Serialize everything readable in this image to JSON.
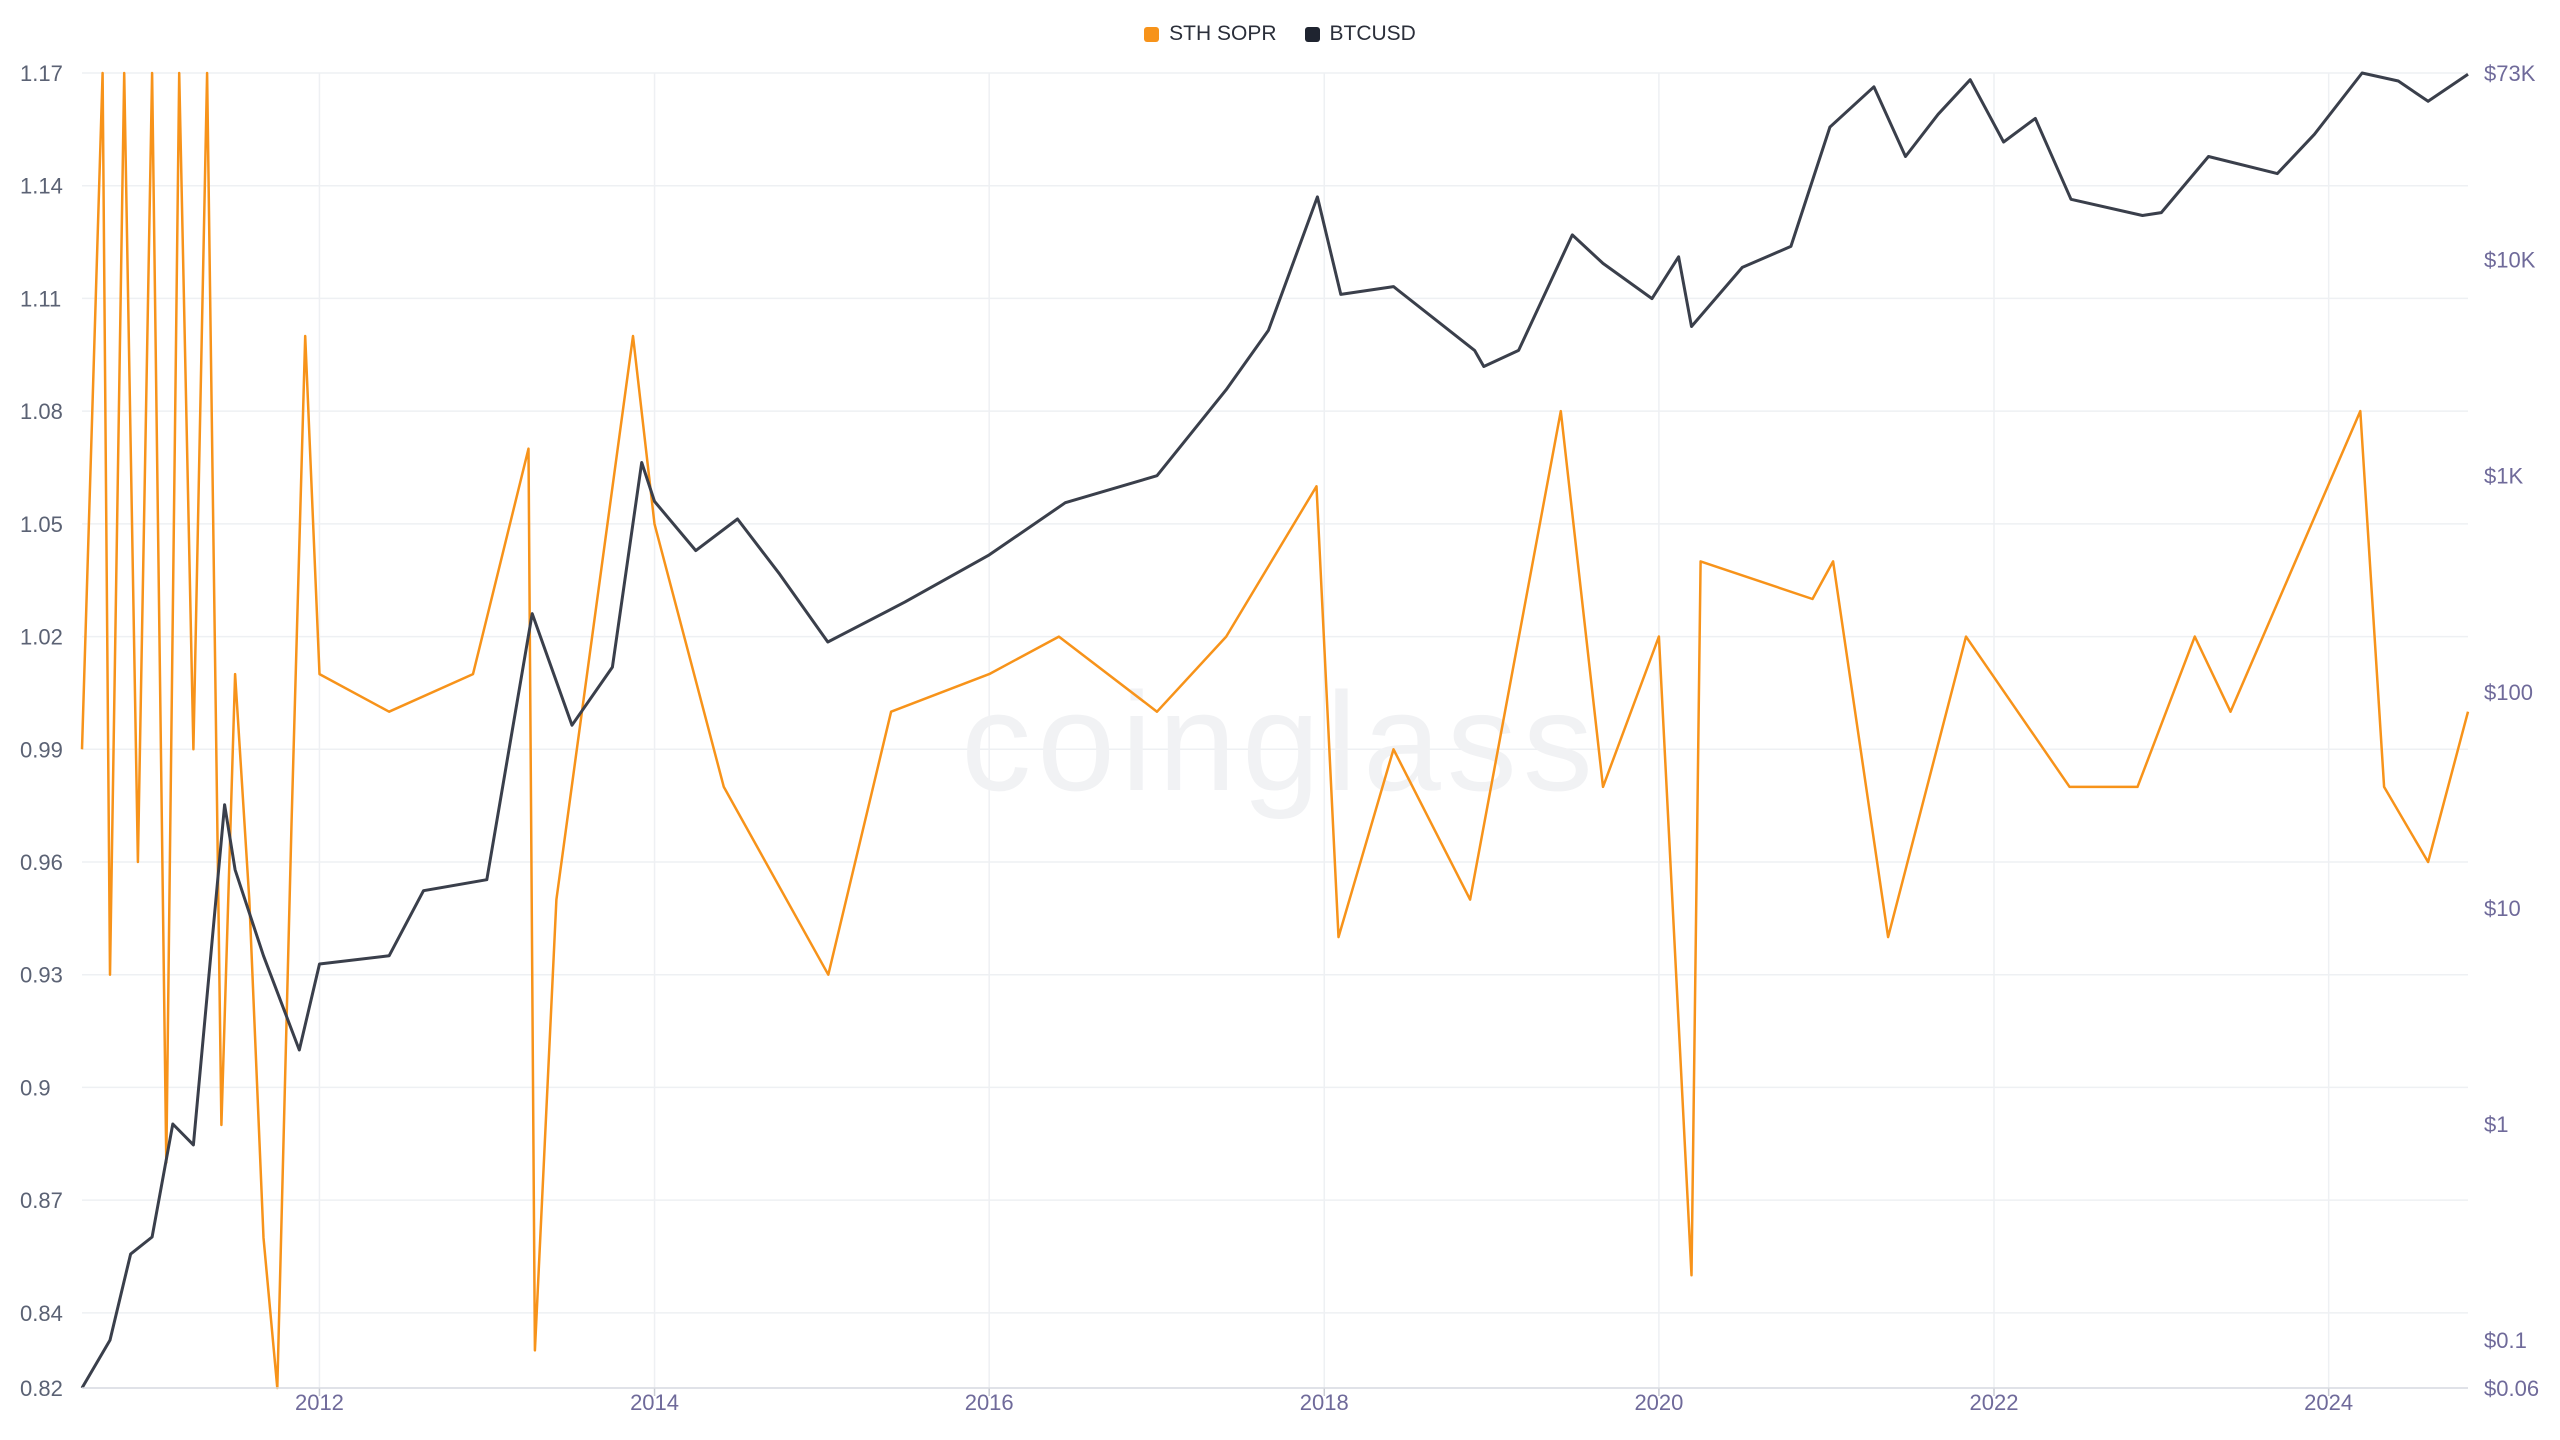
{
  "legend": {
    "items": [
      {
        "label": "STH SOPR",
        "color": "#f7931a"
      },
      {
        "label": "BTCUSD",
        "color": "#1f2430"
      }
    ]
  },
  "watermark": "coinglass",
  "chart_data": {
    "type": "line",
    "title": "",
    "legend_position": "top-center",
    "grid": true,
    "x_axis": {
      "type": "date",
      "range": [
        "2010-08-01",
        "2024-10-31"
      ],
      "tick_labels": [
        "2012",
        "2014",
        "2016",
        "2018",
        "2020",
        "2022",
        "2024"
      ],
      "tick_dates": [
        "2012-01-01",
        "2014-01-01",
        "2016-01-01",
        "2018-01-01",
        "2020-01-01",
        "2022-01-01",
        "2024-01-01"
      ]
    },
    "y_axis_left": {
      "label": "",
      "range": [
        0.82,
        1.17
      ],
      "ticks": [
        0.82,
        0.84,
        0.87,
        0.9,
        0.93,
        0.96,
        0.99,
        1.02,
        1.05,
        1.08,
        1.11,
        1.14,
        1.17
      ],
      "tick_labels": [
        "0.82",
        "0.84",
        "0.87",
        "0.9",
        "0.93",
        "0.96",
        "0.99",
        "1.02",
        "1.05",
        "1.08",
        "1.11",
        "1.14",
        "1.17"
      ]
    },
    "y_axis_right": {
      "label": "",
      "scale": "log",
      "range": [
        0.06,
        73000
      ],
      "ticks": [
        0.06,
        0.1,
        1,
        10,
        100,
        1000,
        10000,
        73000
      ],
      "tick_labels": [
        "$0.06",
        "$0.1",
        "$1",
        "$10",
        "$100",
        "$1K",
        "$10K",
        "$73K"
      ]
    },
    "series": [
      {
        "name": "STH SOPR",
        "axis": "left",
        "color": "#f7931a",
        "points": [
          [
            "2010-08-01",
            0.99
          ],
          [
            "2010-09-15",
            1.17
          ],
          [
            "2010-10-01",
            0.93
          ],
          [
            "2010-11-01",
            1.17
          ],
          [
            "2010-12-01",
            0.96
          ],
          [
            "2011-01-01",
            1.17
          ],
          [
            "2011-02-01",
            0.88
          ],
          [
            "2011-03-01",
            1.17
          ],
          [
            "2011-04-01",
            0.99
          ],
          [
            "2011-05-01",
            1.17
          ],
          [
            "2011-06-01",
            0.89
          ],
          [
            "2011-07-01",
            1.01
          ],
          [
            "2011-08-01",
            0.95
          ],
          [
            "2011-09-01",
            0.86
          ],
          [
            "2011-10-01",
            0.82
          ],
          [
            "2011-11-01",
            0.97
          ],
          [
            "2011-12-01",
            1.1
          ],
          [
            "2012-01-01",
            1.01
          ],
          [
            "2012-06-01",
            1.0
          ],
          [
            "2012-12-01",
            1.01
          ],
          [
            "2013-04-01",
            1.07
          ],
          [
            "2013-04-15",
            0.83
          ],
          [
            "2013-06-01",
            0.95
          ],
          [
            "2013-11-15",
            1.1
          ],
          [
            "2014-01-01",
            1.05
          ],
          [
            "2014-06-01",
            0.98
          ],
          [
            "2015-01-15",
            0.93
          ],
          [
            "2015-06-01",
            1.0
          ],
          [
            "2016-01-01",
            1.01
          ],
          [
            "2016-06-01",
            1.02
          ],
          [
            "2017-01-01",
            1.0
          ],
          [
            "2017-06-01",
            1.02
          ],
          [
            "2017-12-15",
            1.06
          ],
          [
            "2018-02-01",
            0.94
          ],
          [
            "2018-06-01",
            0.99
          ],
          [
            "2018-11-15",
            0.95
          ],
          [
            "2019-06-01",
            1.08
          ],
          [
            "2019-09-01",
            0.98
          ],
          [
            "2020-01-01",
            1.02
          ],
          [
            "2020-03-12",
            0.85
          ],
          [
            "2020-04-01",
            1.04
          ],
          [
            "2020-12-01",
            1.03
          ],
          [
            "2021-01-15",
            1.04
          ],
          [
            "2021-05-15",
            0.94
          ],
          [
            "2021-11-01",
            1.02
          ],
          [
            "2022-06-15",
            0.98
          ],
          [
            "2022-11-10",
            0.98
          ],
          [
            "2023-03-15",
            1.02
          ],
          [
            "2023-06-01",
            1.0
          ],
          [
            "2024-03-10",
            1.08
          ],
          [
            "2024-05-01",
            0.98
          ],
          [
            "2024-08-05",
            0.96
          ],
          [
            "2024-10-31",
            1.0
          ]
        ]
      },
      {
        "name": "BTCUSD",
        "axis": "right",
        "color": "#3a3f4b",
        "points": [
          [
            "2010-08-01",
            0.06
          ],
          [
            "2010-10-01",
            0.1
          ],
          [
            "2010-11-15",
            0.25
          ],
          [
            "2011-01-01",
            0.3
          ],
          [
            "2011-02-15",
            1.0
          ],
          [
            "2011-04-01",
            0.8
          ],
          [
            "2011-06-08",
            30
          ],
          [
            "2011-07-01",
            15
          ],
          [
            "2011-09-01",
            6
          ],
          [
            "2011-11-18",
            2.2
          ],
          [
            "2012-01-01",
            5.5
          ],
          [
            "2012-06-01",
            6
          ],
          [
            "2012-08-15",
            12
          ],
          [
            "2012-12-31",
            13.5
          ],
          [
            "2013-04-09",
            230
          ],
          [
            "2013-07-05",
            70
          ],
          [
            "2013-10-01",
            130
          ],
          [
            "2013-12-04",
            1150
          ],
          [
            "2014-01-01",
            760
          ],
          [
            "2014-04-01",
            450
          ],
          [
            "2014-07-01",
            630
          ],
          [
            "2014-10-01",
            350
          ],
          [
            "2015-01-14",
            170
          ],
          [
            "2015-07-01",
            260
          ],
          [
            "2016-01-01",
            430
          ],
          [
            "2016-06-15",
            750
          ],
          [
            "2017-01-01",
            1000
          ],
          [
            "2017-06-01",
            2500
          ],
          [
            "2017-09-01",
            4700
          ],
          [
            "2017-12-17",
            19500
          ],
          [
            "2018-02-06",
            6900
          ],
          [
            "2018-06-01",
            7500
          ],
          [
            "2018-11-25",
            3800
          ],
          [
            "2018-12-15",
            3200
          ],
          [
            "2019-03-01",
            3800
          ],
          [
            "2019-06-26",
            13000
          ],
          [
            "2019-09-01",
            9600
          ],
          [
            "2019-12-17",
            6600
          ],
          [
            "2020-02-13",
            10300
          ],
          [
            "2020-03-12",
            4900
          ],
          [
            "2020-07-01",
            9200
          ],
          [
            "2020-10-15",
            11500
          ],
          [
            "2021-01-08",
            41000
          ],
          [
            "2021-04-14",
            63000
          ],
          [
            "2021-06-22",
            30000
          ],
          [
            "2021-09-01",
            47000
          ],
          [
            "2021-11-10",
            68000
          ],
          [
            "2022-01-22",
            35000
          ],
          [
            "2022-04-01",
            45000
          ],
          [
            "2022-06-18",
            19000
          ],
          [
            "2022-11-21",
            16000
          ],
          [
            "2023-01-01",
            16500
          ],
          [
            "2023-04-14",
            30000
          ],
          [
            "2023-09-11",
            25000
          ],
          [
            "2023-12-01",
            38000
          ],
          [
            "2024-03-14",
            73000
          ],
          [
            "2024-06-01",
            67000
          ],
          [
            "2024-08-05",
            54000
          ],
          [
            "2024-10-31",
            72000
          ]
        ]
      }
    ]
  }
}
